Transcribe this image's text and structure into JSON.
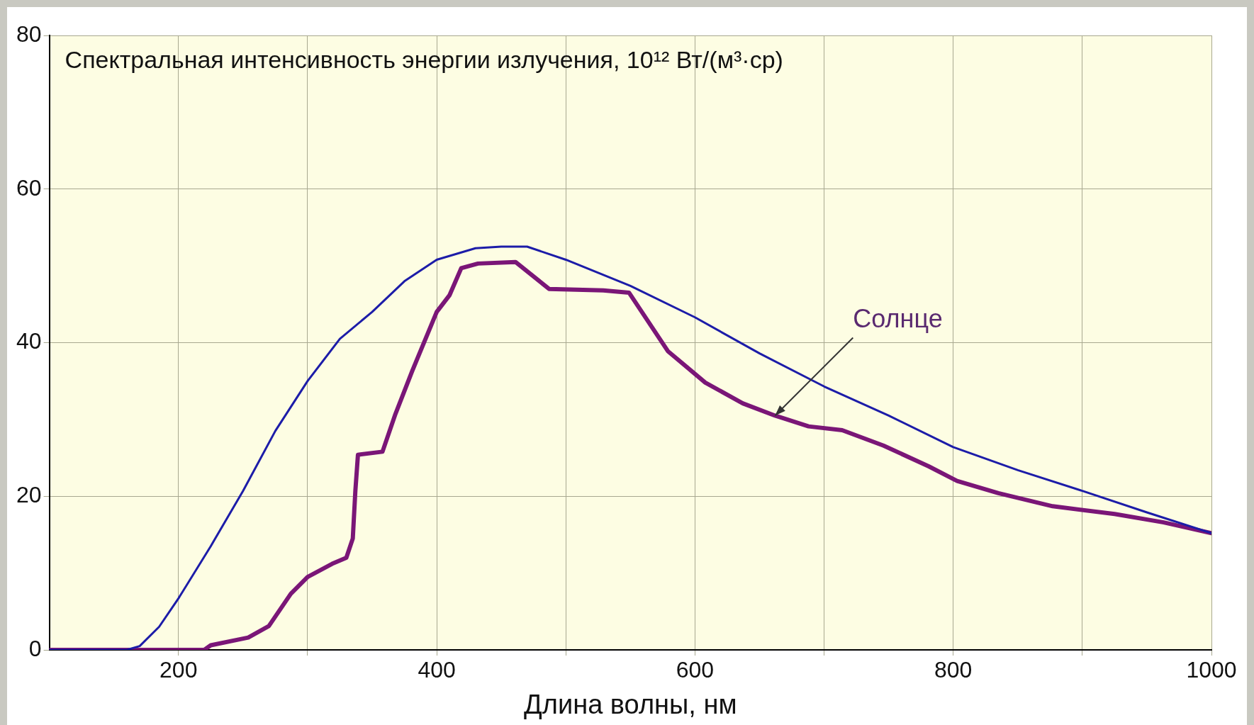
{
  "chart_data": {
    "type": "line",
    "ylabel": "Спектральная интенсивность энергии излучения, 10¹² Вт/(м³·ср)",
    "xlabel": "Длина волны, нм",
    "xlim": [
      100,
      1000
    ],
    "ylim": [
      0,
      80
    ],
    "xticks": [
      200,
      {
        "value": 300,
        "label": null
      },
      400,
      {
        "value": 500,
        "label": null
      },
      600,
      {
        "value": 700,
        "label": null
      },
      800,
      {
        "value": 900,
        "label": null
      },
      1000
    ],
    "yticks": [
      0,
      20,
      40,
      60,
      80
    ],
    "grid": true,
    "legend": false,
    "marker": "none",
    "line_style": "solid",
    "annotations": [
      {
        "text": "Солнце",
        "x": 662,
        "y": 30.5
      }
    ],
    "series": [
      {
        "color": "#1c1ca8",
        "x": [
          100,
          160,
          170,
          185,
          200,
          225,
          250,
          275,
          300,
          325,
          350,
          375,
          400,
          430,
          450,
          470,
          500,
          550,
          600,
          650,
          700,
          750,
          800,
          850,
          900,
          950,
          1000
        ],
        "values": [
          0,
          0,
          0.5,
          3,
          6.7,
          13.5,
          20.7,
          28.5,
          35,
          40.5,
          44,
          48,
          50.8,
          52.3,
          52.5,
          52.5,
          50.8,
          47.4,
          43.3,
          38.6,
          34.3,
          30.5,
          26.4,
          23.4,
          20.7,
          17.9,
          15.2
        ]
      },
      {
        "color": "#7a1677",
        "x": [
          100,
          220,
          225,
          254,
          270,
          287,
          300,
          319,
          330,
          335,
          337,
          339,
          358,
          368,
          381,
          400,
          410,
          419,
          432,
          461,
          487,
          529,
          549,
          579,
          608,
          637,
          662,
          688,
          714,
          746,
          781,
          803,
          835,
          877,
          925,
          963,
          1000
        ],
        "values": [
          0,
          0,
          0.6,
          1.6,
          3.1,
          7.3,
          9.5,
          11.2,
          12,
          14.5,
          20.7,
          25.4,
          25.8,
          30.7,
          36.3,
          44,
          46.2,
          49.7,
          50.3,
          50.5,
          47,
          46.8,
          46.5,
          38.9,
          34.8,
          32.1,
          30.5,
          29.1,
          28.6,
          26.6,
          23.9,
          22,
          20.4,
          18.7,
          17.7,
          16.6,
          15.2
        ]
      }
    ]
  }
}
